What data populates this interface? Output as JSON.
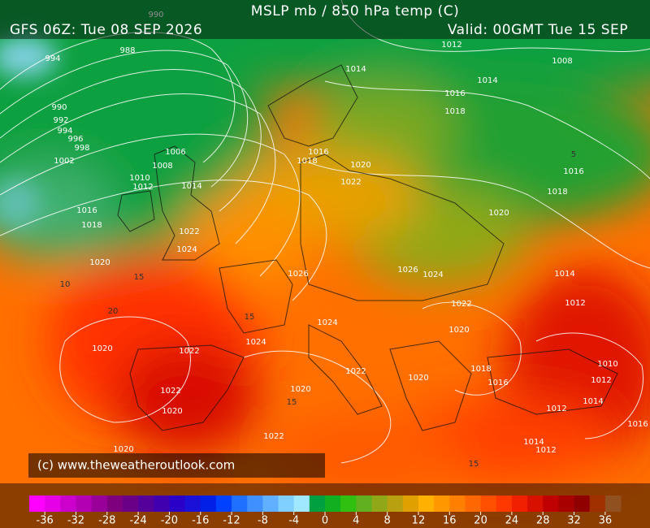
{
  "header": {
    "title": "MSLP mb / 850 hPa temp (C)",
    "run": "GFS 06Z: Tue 08 SEP 2026",
    "valid": "Valid: 00GMT Tue 15 SEP"
  },
  "copyright": "(c) www.theweatheroutlook.com",
  "colorbar": {
    "ticks": [
      -36,
      -32,
      -28,
      -24,
      -20,
      -16,
      -12,
      -8,
      -4,
      0,
      4,
      8,
      12,
      16,
      20,
      24,
      28,
      32,
      36
    ],
    "colors": [
      "#ff00ff",
      "#e600e6",
      "#cc00cc",
      "#b300b3",
      "#990099",
      "#7f007f",
      "#6a0085",
      "#55009a",
      "#4000b0",
      "#2a00c8",
      "#1a10d8",
      "#0020e8",
      "#0040ff",
      "#2070ff",
      "#4090ff",
      "#60b0ff",
      "#80d0ff",
      "#a0e8ff",
      "#00a040",
      "#10b020",
      "#30c010",
      "#60b020",
      "#90a818",
      "#b8a010",
      "#e0a000",
      "#ffb000",
      "#ff9800",
      "#ff8000",
      "#ff6800",
      "#ff5000",
      "#ff3800",
      "#f02000",
      "#d81000",
      "#c00000",
      "#a80000",
      "#900000",
      "#a03000",
      "#905020"
    ]
  },
  "isobar_labels": [
    990,
    988,
    994,
    990,
    992,
    994,
    996,
    998,
    1002,
    1006,
    1008,
    1010,
    1012,
    1014,
    1016,
    1018,
    1020,
    1022,
    1024,
    1026,
    1014,
    1012,
    1008,
    1014,
    1016,
    1018,
    1016,
    1018,
    1020,
    1022,
    1016,
    1018,
    1020,
    1026,
    1024,
    1022,
    1020,
    1014,
    1012,
    1020,
    1022,
    1024,
    1024,
    1022,
    1020,
    1022,
    1020,
    1020,
    1018,
    1016,
    1012,
    1014,
    1012,
    1014,
    1012,
    1022,
    1020,
    1010,
    1016
  ],
  "isotherm_labels": [
    15,
    20,
    10,
    5,
    15,
    15,
    15
  ]
}
